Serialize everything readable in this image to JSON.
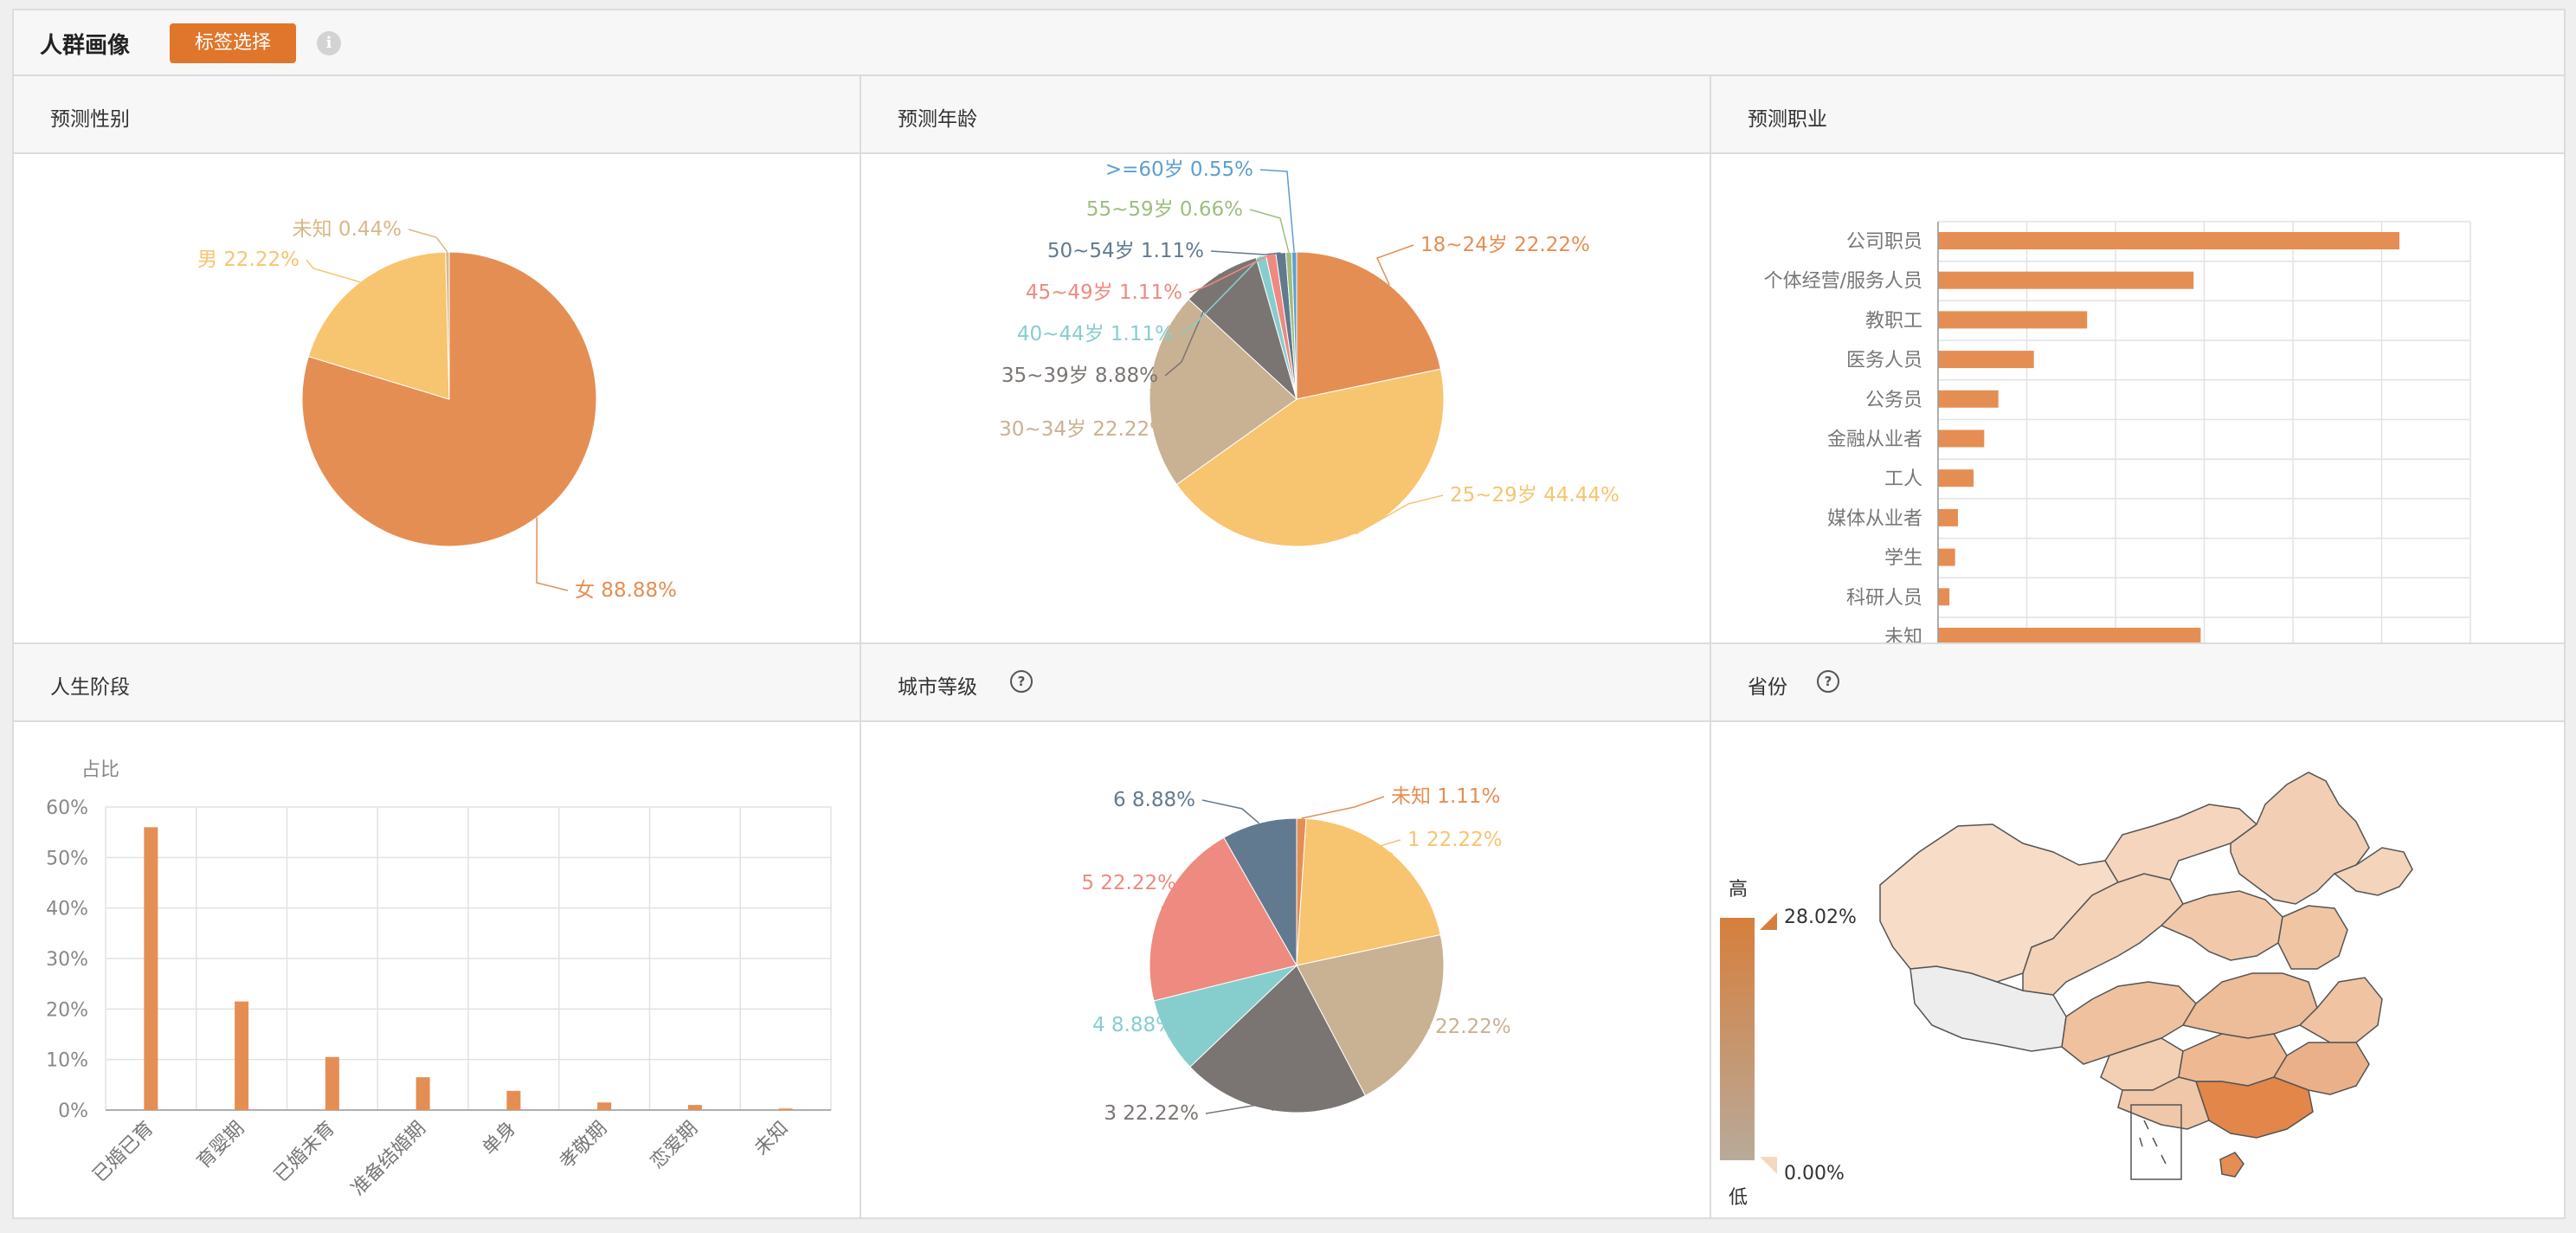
{
  "header": {
    "title": "人群画像",
    "tag_button": "标签选择",
    "info_icon": "i"
  },
  "panels": {
    "gender": {
      "title": "预测性别"
    },
    "age": {
      "title": "预测年龄"
    },
    "occupation": {
      "title": "预测职业"
    },
    "life_stage": {
      "title": "人生阶段"
    },
    "city_level": {
      "title": "城市等级",
      "help": "?"
    },
    "province": {
      "title": "省份",
      "help": "?"
    }
  },
  "chart_data": [
    {
      "id": "gender",
      "type": "pie",
      "slices": [
        {
          "label": "女",
          "pct": "88.88%",
          "value": 88.88,
          "color": "#e58e53"
        },
        {
          "label": "男",
          "pct": "22.22%",
          "value": 22.22,
          "color": "#f7c470"
        },
        {
          "label": "未知",
          "pct": "0.44%",
          "value": 0.44,
          "color": "#d9b888"
        }
      ]
    },
    {
      "id": "age",
      "type": "pie",
      "slices": [
        {
          "label": "18~24岁",
          "pct": "22.22%",
          "value": 22.22,
          "color": "#e58e53"
        },
        {
          "label": "25~29岁",
          "pct": "44.44%",
          "value": 44.44,
          "color": "#f7c470"
        },
        {
          "label": "30~34岁",
          "pct": "22.22%",
          "value": 22.22,
          "color": "#c9b193"
        },
        {
          "label": "35~39岁",
          "pct": "8.88%",
          "value": 8.88,
          "color": "#7a7573"
        },
        {
          "label": "40~44岁",
          "pct": "1.11%",
          "value": 1.11,
          "color": "#86cece"
        },
        {
          "label": "45~49岁",
          "pct": "1.11%",
          "value": 1.11,
          "color": "#ee8a7f"
        },
        {
          "label": "50~54岁",
          "pct": "1.11%",
          "value": 1.11,
          "color": "#627a90"
        },
        {
          "label": "55~59岁",
          "pct": "0.66%",
          "value": 0.66,
          "color": "#9fbd7c"
        },
        {
          "label": ">=60岁",
          "pct": "0.55%",
          "value": 0.55,
          "color": "#5d9fd1"
        }
      ]
    },
    {
      "id": "occupation",
      "type": "bar",
      "categories": [
        "公司职员",
        "个体经营/服务人员",
        "教职工",
        "医务人员",
        "公务员",
        "金融从业者",
        "工人",
        "媒体从业者",
        "学生",
        "科研人员",
        "未知"
      ],
      "values": [
        65,
        36,
        21,
        13.5,
        8.5,
        6.5,
        5,
        2.8,
        2.4,
        1.6,
        37
      ],
      "xlim": [
        0,
        75
      ],
      "color": "#e58e53"
    },
    {
      "id": "life_stage",
      "type": "bar",
      "ylabel": "占比",
      "categories": [
        "已婚已育",
        "育婴期",
        "已婚未育",
        "准备结婚期",
        "单身",
        "孝敬期",
        "恋爱期",
        "未知"
      ],
      "values": [
        56,
        21.5,
        10.5,
        6.5,
        3.8,
        1.5,
        1,
        0.3
      ],
      "yticks": [
        "60%",
        "50%",
        "40%",
        "30%",
        "20%",
        "10%",
        "0%"
      ],
      "ylim": [
        0,
        60
      ],
      "color": "#e58e53"
    },
    {
      "id": "city_level",
      "type": "pie",
      "slices": [
        {
          "label": "未知",
          "pct": "1.11%",
          "value": 1.11,
          "color": "#e58e53"
        },
        {
          "label": "1",
          "pct": "22.22%",
          "value": 22.22,
          "color": "#f7c470"
        },
        {
          "label": "2",
          "pct": "22.22%",
          "value": 22.22,
          "color": "#c9b193"
        },
        {
          "label": "3",
          "pct": "22.22%",
          "value": 22.22,
          "color": "#7a7573"
        },
        {
          "label": "4",
          "pct": "8.88%",
          "value": 8.88,
          "color": "#86cece"
        },
        {
          "label": "5",
          "pct": "22.22%",
          "value": 22.22,
          "color": "#ee8a7f"
        },
        {
          "label": "6",
          "pct": "8.88%",
          "value": 8.88,
          "color": "#627a90"
        }
      ]
    },
    {
      "id": "province",
      "type": "heatmap",
      "legend": {
        "high_label": "高",
        "low_label": "低",
        "max": "28.02%",
        "min": "0.00%",
        "high_color": "#d67f3c",
        "low_color": "#b8aa9a"
      }
    }
  ]
}
